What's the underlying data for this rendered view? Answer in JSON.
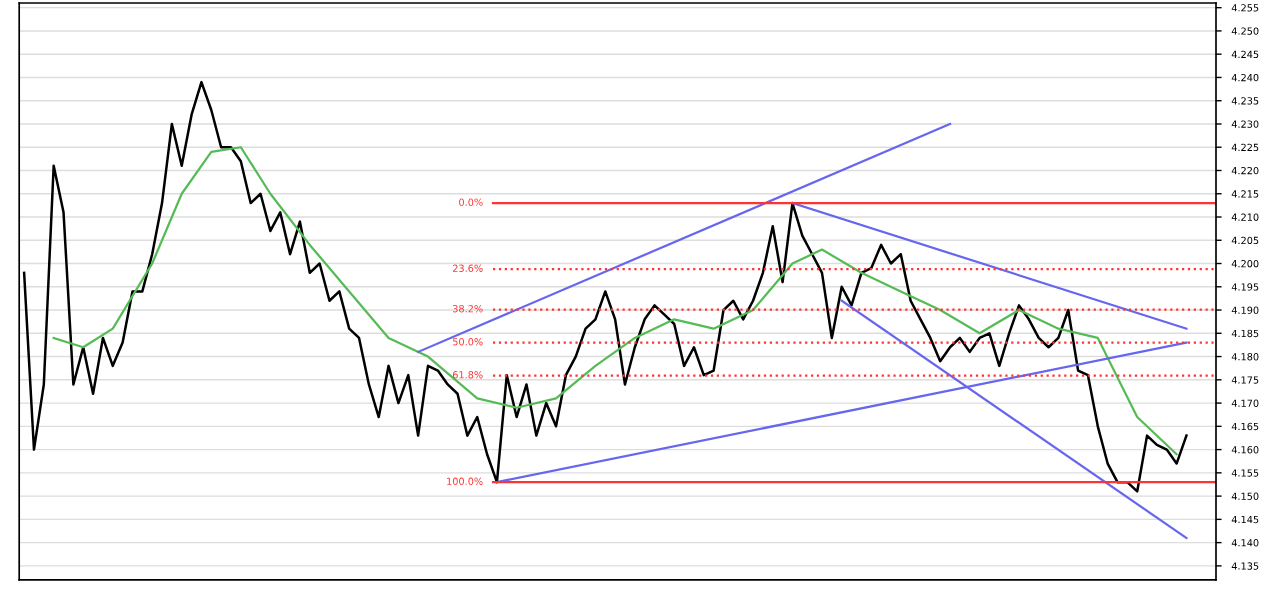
{
  "chart_data": {
    "type": "line",
    "ylim": [
      4.132,
      4.256
    ],
    "tick_labels": "y",
    "grid": "y",
    "categories": [
      null,
      null,
      null,
      null,
      null,
      null,
      null,
      null,
      null,
      null,
      null,
      null,
      null,
      null,
      null,
      null,
      null,
      null,
      null,
      null,
      null,
      null,
      null,
      null,
      null,
      null,
      null,
      null,
      null,
      null,
      null,
      null,
      null,
      null,
      null,
      null,
      null,
      null,
      null,
      null,
      null,
      null,
      null,
      null,
      null,
      null,
      null,
      null,
      null,
      null,
      null,
      null,
      null,
      null,
      null,
      null,
      null,
      null,
      null,
      null,
      null,
      null,
      null,
      null,
      null,
      null,
      null,
      null,
      null,
      null,
      null,
      null,
      null,
      null,
      null,
      null,
      null,
      null,
      null,
      null,
      null,
      null,
      null,
      null,
      null,
      null,
      null,
      null,
      null,
      null,
      null,
      null,
      null,
      null,
      null,
      null,
      null,
      null,
      null,
      null,
      null,
      null,
      null,
      null,
      null,
      null,
      null,
      null,
      null,
      null,
      null,
      null,
      null,
      null,
      null,
      null,
      null,
      null,
      null
    ],
    "yticks": [
      {
        "value": 4.135,
        "label": "4.135"
      },
      {
        "value": 4.14,
        "label": "4.140"
      },
      {
        "value": 4.145,
        "label": "4.145"
      },
      {
        "value": 4.15,
        "label": "4.150"
      },
      {
        "value": 4.155,
        "label": "4.155"
      },
      {
        "value": 4.16,
        "label": "4.160"
      },
      {
        "value": 4.165,
        "label": "4.165"
      },
      {
        "value": 4.17,
        "label": "4.170"
      },
      {
        "value": 4.175,
        "label": "4.175"
      },
      {
        "value": 4.18,
        "label": "4.180"
      },
      {
        "value": 4.185,
        "label": "4.185"
      },
      {
        "value": 4.19,
        "label": "4.190"
      },
      {
        "value": 4.195,
        "label": "4.195"
      },
      {
        "value": 4.2,
        "label": "4.200"
      },
      {
        "value": 4.205,
        "label": "4.205"
      },
      {
        "value": 4.21,
        "label": "4.210"
      },
      {
        "value": 4.215,
        "label": "4.215"
      },
      {
        "value": 4.22,
        "label": "4.220"
      },
      {
        "value": 4.225,
        "label": "4.225"
      },
      {
        "value": 4.23,
        "label": "4.230"
      },
      {
        "value": 4.235,
        "label": "4.235"
      },
      {
        "value": 4.24,
        "label": "4.240"
      },
      {
        "value": 4.245,
        "label": "4.245"
      },
      {
        "value": 4.25,
        "label": "4.250"
      },
      {
        "value": 4.255,
        "label": "4.255"
      }
    ],
    "series": [
      {
        "color": "#000000",
        "values": [
          4.198,
          4.16,
          4.174,
          4.221,
          4.211,
          4.174,
          4.182,
          4.172,
          4.184,
          4.178,
          4.183,
          4.194,
          4.194,
          4.202,
          4.213,
          4.23,
          4.221,
          4.232,
          4.239,
          4.233,
          4.225,
          4.225,
          4.222,
          4.213,
          4.215,
          4.207,
          4.211,
          4.202,
          4.209,
          4.198,
          4.2,
          4.192,
          4.194,
          4.186,
          4.184,
          4.174,
          4.167,
          4.178,
          4.17,
          4.176,
          4.163,
          4.178,
          4.177,
          4.174,
          4.172,
          4.163,
          4.167,
          4.159,
          4.153,
          4.176,
          4.167,
          4.174,
          4.163,
          4.17,
          4.165,
          4.176,
          4.18,
          4.186,
          4.188,
          4.194,
          4.188,
          4.174,
          4.182,
          4.188,
          4.191,
          4.189,
          4.187,
          4.178,
          4.182,
          4.176,
          4.177,
          4.19,
          4.192,
          4.188,
          4.192,
          4.198,
          4.208,
          4.196,
          4.213,
          4.206,
          4.202,
          4.198,
          4.184,
          4.195,
          4.191,
          4.198,
          4.199,
          4.204,
          4.2,
          4.202,
          4.192,
          4.188,
          4.184,
          4.179,
          4.182,
          4.184,
          4.181,
          4.184,
          4.185,
          4.178,
          4.185,
          4.191,
          4.188,
          4.184,
          4.182,
          4.184,
          4.19,
          4.177,
          4.176,
          4.165,
          4.157,
          4.153,
          4.153,
          4.151,
          4.163,
          4.161,
          4.16,
          4.157,
          4.163
        ]
      },
      {
        "color": "#55bb55",
        "values": [
          null,
          null,
          null,
          4.184,
          null,
          null,
          4.182,
          null,
          null,
          4.186,
          null,
          null,
          null,
          4.2,
          null,
          null,
          4.215,
          null,
          null,
          4.224,
          null,
          null,
          4.225,
          null,
          null,
          4.215,
          null,
          null,
          null,
          4.204,
          null,
          null,
          null,
          4.194,
          null,
          null,
          null,
          4.184,
          null,
          null,
          null,
          4.18,
          null,
          null,
          null,
          null,
          4.171,
          null,
          null,
          null,
          4.169,
          null,
          null,
          null,
          4.171,
          null,
          null,
          null,
          4.178,
          null,
          null,
          null,
          4.184,
          null,
          null,
          null,
          4.188,
          null,
          null,
          null,
          4.186,
          null,
          null,
          null,
          4.19,
          null,
          null,
          null,
          4.2,
          null,
          null,
          4.203,
          null,
          null,
          null,
          4.198,
          null,
          null,
          null,
          4.194,
          null,
          null,
          null,
          4.19,
          null,
          null,
          null,
          4.185,
          null,
          null,
          null,
          4.19,
          null,
          null,
          null,
          4.186,
          null,
          null,
          null,
          4.184,
          null,
          null,
          null,
          4.167,
          null,
          null,
          null,
          4.159,
          null
        ]
      },
      {
        "color": "#6666ee",
        "values": [
          null,
          null,
          null,
          null,
          null,
          null,
          null,
          null,
          null,
          null,
          null,
          null,
          null,
          null,
          null,
          null,
          null,
          null,
          null,
          null,
          null,
          null,
          null,
          null,
          null,
          null,
          null,
          null,
          null,
          null,
          null,
          null,
          null,
          null,
          null,
          null,
          null,
          null,
          null,
          null,
          null,
          null,
          null,
          null,
          null,
          null,
          null,
          null,
          4.153,
          null,
          null,
          null,
          null,
          null,
          null,
          null,
          null,
          null,
          null,
          null,
          null,
          null,
          null,
          null,
          null,
          null,
          null,
          null,
          null,
          null,
          null,
          null,
          null,
          null,
          null,
          null,
          null,
          null,
          null,
          null,
          null,
          null,
          null,
          null,
          null,
          null,
          null,
          null,
          null,
          null,
          null,
          null,
          null,
          null,
          null,
          null,
          null,
          null,
          null,
          null,
          null,
          null,
          null,
          null,
          null,
          null,
          null,
          null,
          null,
          null,
          null,
          null,
          null,
          null,
          null,
          null,
          null,
          null,
          4.183
        ]
      },
      {
        "color": "#6666ee",
        "values": [
          null,
          null,
          null,
          null,
          null,
          null,
          null,
          null,
          null,
          null,
          null,
          null,
          null,
          null,
          null,
          null,
          null,
          null,
          null,
          null,
          null,
          null,
          null,
          null,
          null,
          null,
          null,
          null,
          null,
          null,
          null,
          null,
          null,
          null,
          null,
          null,
          null,
          null,
          null,
          null,
          4.181,
          null,
          null,
          null,
          null,
          null,
          null,
          null,
          null,
          null,
          null,
          null,
          null,
          null,
          null,
          null,
          null,
          null,
          null,
          null,
          null,
          null,
          null,
          null,
          null,
          null,
          null,
          null,
          null,
          null,
          null,
          null,
          null,
          null,
          null,
          null,
          null,
          null,
          null,
          null,
          null,
          null,
          null,
          null,
          null,
          null,
          null,
          null,
          null,
          null,
          null,
          null,
          null,
          null,
          4.23,
          null,
          null,
          null,
          null,
          null,
          null,
          null,
          null,
          null,
          null,
          null,
          null,
          null,
          null,
          null,
          null,
          null,
          null,
          null,
          null,
          null,
          null,
          null,
          null
        ]
      },
      {
        "color": "#6666ee",
        "values": [
          null,
          null,
          null,
          null,
          null,
          null,
          null,
          null,
          null,
          null,
          null,
          null,
          null,
          null,
          null,
          null,
          null,
          null,
          null,
          null,
          null,
          null,
          null,
          null,
          null,
          null,
          null,
          null,
          null,
          null,
          null,
          null,
          null,
          null,
          null,
          null,
          null,
          null,
          null,
          null,
          null,
          null,
          null,
          null,
          null,
          null,
          null,
          null,
          null,
          null,
          null,
          null,
          null,
          null,
          null,
          null,
          null,
          null,
          null,
          null,
          null,
          null,
          null,
          null,
          null,
          null,
          null,
          null,
          null,
          null,
          null,
          null,
          null,
          null,
          null,
          null,
          null,
          null,
          4.213,
          null,
          null,
          null,
          null,
          null,
          null,
          null,
          null,
          null,
          null,
          null,
          null,
          null,
          null,
          null,
          null,
          null,
          null,
          null,
          null,
          null,
          null,
          null,
          null,
          null,
          null,
          null,
          null,
          null,
          null,
          null,
          null,
          null,
          null,
          null,
          null,
          null,
          null,
          null,
          4.186
        ]
      },
      {
        "color": "#6666ee",
        "values": [
          null,
          null,
          null,
          null,
          null,
          null,
          null,
          null,
          null,
          null,
          null,
          null,
          null,
          null,
          null,
          null,
          null,
          null,
          null,
          null,
          null,
          null,
          null,
          null,
          null,
          null,
          null,
          null,
          null,
          null,
          null,
          null,
          null,
          null,
          null,
          null,
          null,
          null,
          null,
          null,
          null,
          null,
          null,
          null,
          null,
          null,
          null,
          null,
          null,
          null,
          null,
          null,
          null,
          null,
          null,
          null,
          null,
          null,
          null,
          null,
          null,
          null,
          null,
          null,
          null,
          null,
          null,
          null,
          null,
          null,
          null,
          null,
          null,
          null,
          null,
          null,
          null,
          null,
          null,
          null,
          null,
          null,
          null,
          4.192,
          null,
          null,
          null,
          null,
          null,
          null,
          null,
          null,
          null,
          null,
          null,
          null,
          null,
          null,
          null,
          null,
          null,
          null,
          null,
          null,
          null,
          null,
          null,
          null,
          null,
          null,
          null,
          null,
          null,
          null,
          null,
          null,
          null,
          null,
          4.141
        ]
      }
    ],
    "ref_lines": [
      {
        "axis": "y",
        "value": 4.213,
        "color": "#ff3333",
        "line_style": "solid"
      },
      {
        "axis": "y",
        "value": 4.1988,
        "color": "#ff3333",
        "line_style": "dotted"
      },
      {
        "axis": "y",
        "value": 4.1901,
        "color": "#ff3333",
        "line_style": "dotted"
      },
      {
        "axis": "y",
        "value": 4.183,
        "color": "#ff3333",
        "line_style": "dotted"
      },
      {
        "axis": "y",
        "value": 4.1759,
        "color": "#ff3333",
        "line_style": "dotted"
      },
      {
        "axis": "y",
        "value": 4.153,
        "color": "#ff3333",
        "line_style": "solid"
      }
    ],
    "annotations": [
      "0.0%",
      "23.6%",
      "38.2%",
      "50.0%",
      "61.8%",
      "100.0%"
    ]
  }
}
